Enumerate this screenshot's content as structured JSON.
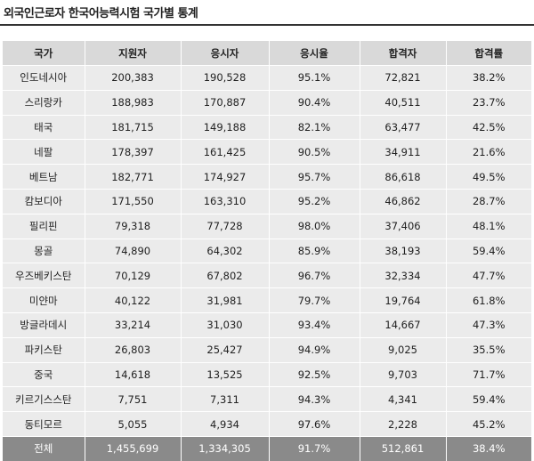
{
  "title": "외국인근로자 한국어능력시험 국가별 통계",
  "table": {
    "headers": [
      "국가",
      "지원자",
      "응시자",
      "응시율",
      "합격자",
      "합격률"
    ],
    "rows": [
      [
        "인도네시아",
        "200,383",
        "190,528",
        "95.1%",
        "72,821",
        "38.2%"
      ],
      [
        "스리랑카",
        "188,983",
        "170,887",
        "90.4%",
        "40,511",
        "23.7%"
      ],
      [
        "태국",
        "181,715",
        "149,188",
        "82.1%",
        "63,477",
        "42.5%"
      ],
      [
        "네팔",
        "178,397",
        "161,425",
        "90.5%",
        "34,911",
        "21.6%"
      ],
      [
        "베트남",
        "182,771",
        "174,927",
        "95.7%",
        "86,618",
        "49.5%"
      ],
      [
        "캄보디아",
        "171,550",
        "163,310",
        "95.2%",
        "46,862",
        "28.7%"
      ],
      [
        "필리핀",
        "79,318",
        "77,728",
        "98.0%",
        "37,406",
        "48.1%"
      ],
      [
        "몽골",
        "74,890",
        "64,302",
        "85.9%",
        "38,193",
        "59.4%"
      ],
      [
        "우즈베키스탄",
        "70,129",
        "67,802",
        "96.7%",
        "32,334",
        "47.7%"
      ],
      [
        "미얀마",
        "40,122",
        "31,981",
        "79.7%",
        "19,764",
        "61.8%"
      ],
      [
        "방글라데시",
        "33,214",
        "31,030",
        "93.4%",
        "14,667",
        "47.3%"
      ],
      [
        "파키스탄",
        "26,803",
        "25,427",
        "94.9%",
        "9,025",
        "35.5%"
      ],
      [
        "중국",
        "14,618",
        "13,525",
        "92.5%",
        "9,703",
        "71.7%"
      ],
      [
        "키르기스스탄",
        "7,751",
        "7,311",
        "94.3%",
        "4,341",
        "59.4%"
      ],
      [
        "동티모르",
        "5,055",
        "4,934",
        "97.6%",
        "2,228",
        "45.2%"
      ]
    ],
    "total": [
      "전체",
      "1,455,699",
      "1,334,305",
      "91.7%",
      "512,861",
      "38.4%"
    ]
  }
}
